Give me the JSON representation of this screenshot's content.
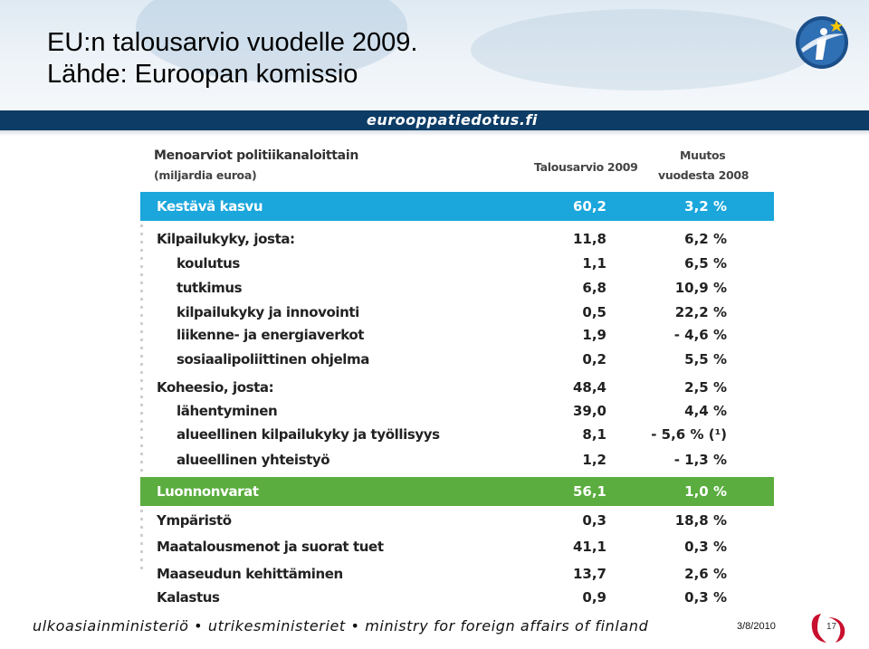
{
  "slide": {
    "title_line1": "EU:n talousarvio vuodelle 2009.",
    "title_line2": "Lähde: Euroopan komissio",
    "banner": "eurooppatiedotus.fi",
    "footer": "ulkoasiainministeriö • utrikesministeriet • ministry for foreign affairs of finland",
    "date": "3/8/2010",
    "page": "17",
    "colors": {
      "navy_bar": "#0d3c66",
      "blue_band": "#1ba6dc",
      "green_band": "#5aad3e",
      "logo_red": "#c8102e"
    }
  },
  "table": {
    "header_left_1": "Menoarviot politiikanaloittain",
    "header_left_2": "(miljardia euroa)",
    "header_col1": "Talousarvio 2009",
    "header_col2_1": "Muutos",
    "header_col2_2": "vuodesta 2008",
    "rows": [
      {
        "label": "Kestävä kasvu",
        "v1": "60,2",
        "v2": "3,2 %"
      },
      {
        "label": "Kilpailukyky, josta:",
        "v1": "11,8",
        "v2": "6,2 %"
      },
      {
        "label": "koulutus",
        "v1": "1,1",
        "v2": "6,5 %"
      },
      {
        "label": "tutkimus",
        "v1": "6,8",
        "v2": "10,9 %"
      },
      {
        "label": "kilpailukyky ja innovointi",
        "v1": "0,5",
        "v2": "22,2 %"
      },
      {
        "label": "liikenne- ja energiaverkot",
        "v1": "1,9",
        "v2": "- 4,6 %"
      },
      {
        "label": "sosiaalipoliittinen ohjelma",
        "v1": "0,2",
        "v2": "5,5 %"
      },
      {
        "label": "Koheesio, josta:",
        "v1": "48,4",
        "v2": "2,5 %"
      },
      {
        "label": "lähentyminen",
        "v1": "39,0",
        "v2": "4,4 %"
      },
      {
        "label": "alueellinen kilpailukyky ja työllisyys",
        "v1": "8,1",
        "v2": "- 5,6 % (¹)"
      },
      {
        "label": "alueellinen yhteistyö",
        "v1": "1,2",
        "v2": "- 1,3 %"
      },
      {
        "label": "Luonnonvarat",
        "v1": "56,1",
        "v2": "1,0 %"
      },
      {
        "label": "Ympäristö",
        "v1": "0,3",
        "v2": "18,8 %"
      },
      {
        "label": "Maatalousmenot ja suorat tuet",
        "v1": "41,1",
        "v2": "0,3 %"
      },
      {
        "label": "Maaseudun kehittäminen",
        "v1": "13,7",
        "v2": "2,6 %"
      },
      {
        "label": "Kalastus",
        "v1": "0,9",
        "v2": "0,3 %"
      }
    ]
  }
}
